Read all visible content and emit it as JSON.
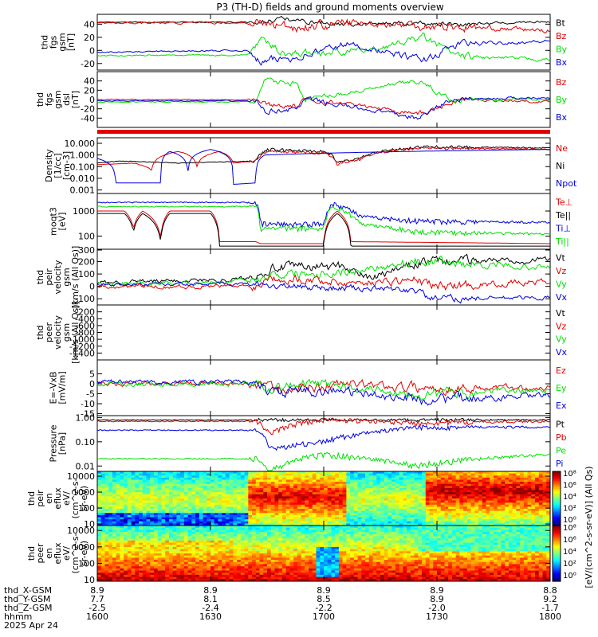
{
  "title": "P3 (TH-D) fields and ground moments overview",
  "colors": {
    "black": "#000000",
    "red": "#e00000",
    "green": "#00e000",
    "blue": "#0000e0"
  },
  "chart_data": {
    "type": "line",
    "time_axis": {
      "ticks": [
        "1600",
        "1630",
        "1700",
        "1730",
        "1800"
      ],
      "rows": [
        {
          "label": "thd_X-GSM",
          "values": [
            "8.9",
            "8.9",
            "8.9",
            "8.9",
            "8.8"
          ]
        },
        {
          "label": "thd_Y-GSM",
          "values": [
            "7.7",
            "8.1",
            "8.5",
            "8.9",
            "9.2"
          ]
        },
        {
          "label": "thd_Z-GSM",
          "values": [
            "-2.5",
            "-2.4",
            "-2.2",
            "-2.0",
            "-1.7"
          ]
        },
        {
          "label": "hhmm",
          "values": [
            "1600",
            "1630",
            "1700",
            "1730",
            "1800"
          ]
        }
      ],
      "date": "2025 Apr 24"
    },
    "panels": [
      {
        "id": "fgs_gsm",
        "ylabel": [
          "thd",
          "fgs",
          "gsm",
          "[nT]"
        ],
        "ylim": [
          -30,
          55
        ],
        "ticks": [
          "40",
          "20",
          "0",
          "-20"
        ],
        "tickvals": [
          40,
          20,
          0,
          -20
        ],
        "legend": [
          {
            "name": "Bt",
            "color": "black"
          },
          {
            "name": "Bz",
            "color": "red"
          },
          {
            "name": "By",
            "color": "green"
          },
          {
            "name": "Bx",
            "color": "blue"
          }
        ]
      },
      {
        "id": "fgs_gsm_dsl",
        "ylabel": [
          "thd",
          "fgs",
          "gsm",
          "dsl",
          "[nT]"
        ],
        "ylim": [
          -60,
          60
        ],
        "ticks": [
          "40",
          "20",
          "0",
          "-20",
          "-40"
        ],
        "tickvals": [
          40,
          20,
          0,
          -20,
          -40
        ],
        "legend": [
          {
            "name": "Bz",
            "color": "red"
          },
          {
            "name": "By",
            "color": "green"
          },
          {
            "name": "Bx",
            "color": "blue"
          }
        ]
      },
      {
        "id": "density",
        "ylabel": [
          "Density",
          "[1/cc]",
          "[cm-3]"
        ],
        "ylim": [
          0.0005,
          30
        ],
        "log": true,
        "ticks": [
          "10.000",
          "1.000",
          "0.100",
          "0.010",
          "0.001"
        ],
        "tickvals": [
          10,
          1,
          0.1,
          0.01,
          0.001
        ],
        "legend": [
          {
            "name": "Ne",
            "color": "red"
          },
          {
            "name": "Ni",
            "color": "black"
          },
          {
            "name": "Npot",
            "color": "blue"
          }
        ]
      },
      {
        "id": "temperature",
        "ylabel": [
          "moqt3",
          "[eV]"
        ],
        "ylim": [
          30,
          5000
        ],
        "log": true,
        "ticks": [
          "1000",
          "100"
        ],
        "tickvals": [
          1000,
          100
        ],
        "legend": [
          {
            "name": "Te⊥",
            "color": "red"
          },
          {
            "name": "Te||",
            "color": "black"
          },
          {
            "name": "Ti⊥",
            "color": "blue"
          },
          {
            "name": "Ti||",
            "color": "green"
          }
        ]
      },
      {
        "id": "peir_velocity",
        "ylabel": [
          "thd",
          "peir",
          "velocity",
          "gsm",
          "[km/s (All Qs)]"
        ],
        "ylim": [
          -150,
          300
        ],
        "ticks": [
          "300",
          "200",
          "100",
          "0",
          "-100"
        ],
        "tickvals": [
          300,
          200,
          100,
          0,
          -100
        ],
        "legend": [
          {
            "name": "Vt",
            "color": "black"
          },
          {
            "name": "Vz",
            "color": "red"
          },
          {
            "name": "Vy",
            "color": "green"
          },
          {
            "name": "Vx",
            "color": "blue"
          }
        ]
      },
      {
        "id": "peer_velocity",
        "ylabel": [
          "thd",
          "peer",
          "velocity",
          "gsm",
          "[km/s (All Qs)]"
        ],
        "ylim": [
          -1600,
          0
        ],
        "ticks": [
          "-200",
          "-400",
          "-600",
          "-800",
          "-1000",
          "-1200",
          "-1400"
        ],
        "tickvals": [
          -200,
          -400,
          -600,
          -800,
          -1000,
          -1200,
          -1400
        ],
        "legend": [
          {
            "name": "Vt",
            "color": "black"
          },
          {
            "name": "Vz",
            "color": "red"
          },
          {
            "name": "Vy",
            "color": "green"
          },
          {
            "name": "Vx",
            "color": "blue"
          }
        ]
      },
      {
        "id": "efield",
        "ylabel": [
          "E=-VxB",
          "[mV/m]"
        ],
        "ylim": [
          -16,
          12
        ],
        "ticks": [
          "5",
          "0",
          "-5",
          "-10",
          "-15"
        ],
        "tickvals": [
          5,
          0,
          -5,
          -10,
          -15
        ],
        "legend": [
          {
            "name": "Ez",
            "color": "red"
          },
          {
            "name": "Ey",
            "color": "green"
          },
          {
            "name": "Ex",
            "color": "blue"
          }
        ]
      },
      {
        "id": "pressure",
        "ylabel": [
          "Pressure",
          "[nPa]"
        ],
        "ylim": [
          0.006,
          1.2
        ],
        "log": true,
        "ticks": [
          "1.00",
          "0.10",
          "0.01"
        ],
        "tickvals": [
          1,
          0.1,
          0.01
        ],
        "legend": [
          {
            "name": "Pt",
            "color": "black"
          },
          {
            "name": "Pb",
            "color": "red"
          },
          {
            "name": "Pe",
            "color": "green"
          },
          {
            "name": "Pi",
            "color": "blue"
          }
        ]
      },
      {
        "id": "peir_en",
        "type": "heatmap",
        "ylabel": [
          "thd",
          "peir",
          "en",
          "eflux",
          "eV/",
          "(cm^2-s-",
          "sr-eV)"
        ],
        "ylim": [
          8,
          20000
        ],
        "log": true,
        "ticks": [
          "10000",
          "1000",
          "100",
          "10"
        ],
        "tickvals": [
          10000,
          1000,
          100,
          10
        ]
      },
      {
        "id": "peer_en",
        "type": "heatmap",
        "ylabel": [
          "thd",
          "peer",
          "en",
          "eflux",
          "eV/",
          "(cm^2-s-",
          "sr-eV)"
        ],
        "ylim": [
          8,
          20000
        ],
        "log": true,
        "ticks": [
          "10000",
          "1000",
          "100",
          "10"
        ],
        "tickvals": [
          10000,
          1000,
          100,
          10
        ]
      }
    ],
    "colorbar": {
      "label": "[eV/(cm^2-s-sr-eV)] (All Qs)",
      "ticks_upper": [
        "10⁸",
        "10⁶",
        "10⁴",
        "10²",
        "10⁰"
      ],
      "ticks_lower": [
        "10⁸",
        "10⁶",
        "10⁴",
        "10²",
        "10⁰"
      ]
    }
  }
}
